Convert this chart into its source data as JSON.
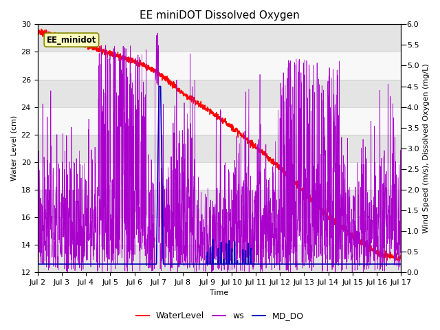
{
  "title": "EE miniDOT Dissolved Oxygen",
  "xlabel": "Time",
  "ylabel_left": "Water Level (cm)",
  "ylabel_right": "Wind Speed (m/s), Dissolved Oxygen (mg/L)",
  "ylim_left": [
    12,
    30
  ],
  "ylim_right": [
    0.0,
    6.0
  ],
  "yticks_left": [
    12,
    14,
    16,
    18,
    20,
    22,
    24,
    26,
    28,
    30
  ],
  "yticks_right": [
    0.0,
    0.5,
    1.0,
    1.5,
    2.0,
    2.5,
    3.0,
    3.5,
    4.0,
    4.5,
    5.0,
    5.5,
    6.0
  ],
  "xtick_labels": [
    "Jul 2",
    "Jul 3",
    "Jul 4",
    "Jul 5",
    "Jul 6",
    "Jul 7",
    "Jul 8",
    "Jul 9",
    "Jul 10",
    "Jul 11",
    "Jul 12",
    "Jul 13",
    "Jul 14",
    "Jul 15",
    "Jul 16",
    "Jul 17"
  ],
  "annotation_text": "EE_minidot",
  "wl_color": "#FF0000",
  "ws_color": "#AA00CC",
  "do_color": "#0000BB",
  "bg_band_color": "#E4E4E4",
  "bg_white_color": "#F8F8F8",
  "title_fontsize": 11,
  "axis_label_fontsize": 8,
  "tick_fontsize": 8
}
